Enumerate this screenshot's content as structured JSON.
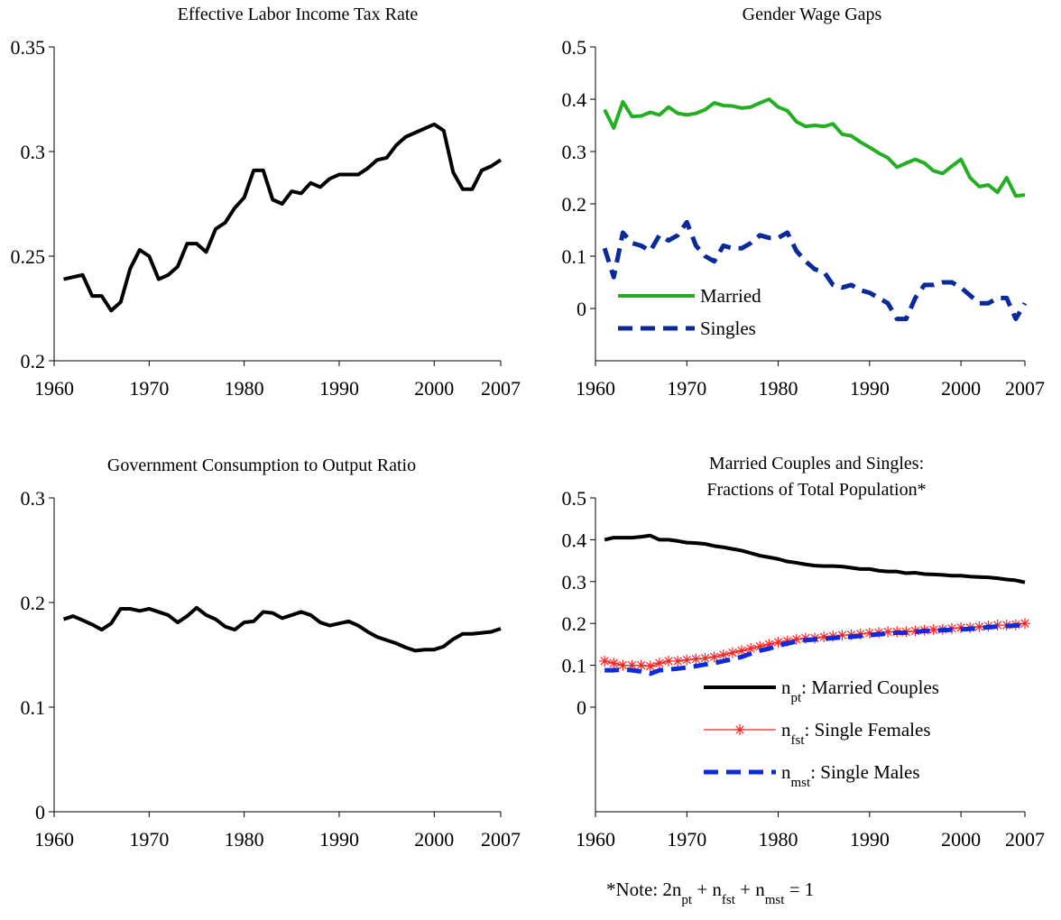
{
  "chart_data": [
    {
      "type": "line",
      "title": "Effective Labor Income Tax Rate",
      "x": [
        1961,
        1962,
        1963,
        1964,
        1965,
        1966,
        1967,
        1968,
        1969,
        1970,
        1971,
        1972,
        1973,
        1974,
        1975,
        1976,
        1977,
        1978,
        1979,
        1980,
        1981,
        1982,
        1983,
        1984,
        1985,
        1986,
        1987,
        1988,
        1989,
        1990,
        1991,
        1992,
        1993,
        1994,
        1995,
        1996,
        1997,
        1998,
        1999,
        2000,
        2001,
        2002,
        2003,
        2004,
        2005,
        2006,
        2007
      ],
      "series": [
        {
          "name": null,
          "color": "#000000",
          "linestyle": "solid",
          "values": [
            0.239,
            0.24,
            0.241,
            0.231,
            0.231,
            0.224,
            0.228,
            0.244,
            0.253,
            0.25,
            0.239,
            0.241,
            0.245,
            0.256,
            0.256,
            0.252,
            0.263,
            0.266,
            0.273,
            0.278,
            0.291,
            0.291,
            0.277,
            0.275,
            0.281,
            0.28,
            0.285,
            0.283,
            0.287,
            0.289,
            0.289,
            0.289,
            0.292,
            0.296,
            0.297,
            0.303,
            0.307,
            0.309,
            0.311,
            0.313,
            0.31,
            0.29,
            0.282,
            0.282,
            0.291,
            0.293,
            0.296
          ]
        }
      ],
      "xlim": [
        1960,
        2007
      ],
      "xticks": [
        1960,
        1970,
        1980,
        1990,
        2000,
        2007
      ],
      "ylim": [
        0.2,
        0.35
      ],
      "yticks": [
        0.2,
        0.25,
        0.3,
        0.35
      ]
    },
    {
      "type": "line",
      "title": "Gender Wage Gaps",
      "x": [
        1961,
        1962,
        1963,
        1964,
        1965,
        1966,
        1967,
        1968,
        1969,
        1970,
        1971,
        1972,
        1973,
        1974,
        1975,
        1976,
        1977,
        1978,
        1979,
        1980,
        1981,
        1982,
        1983,
        1984,
        1985,
        1986,
        1987,
        1988,
        1989,
        1990,
        1991,
        1992,
        1993,
        1994,
        1995,
        1996,
        1997,
        1998,
        1999,
        2000,
        2001,
        2002,
        2003,
        2004,
        2005,
        2006,
        2007
      ],
      "series": [
        {
          "name": "Married",
          "color": "#22b022",
          "linestyle": "solid",
          "values": [
            0.38,
            0.345,
            0.395,
            0.367,
            0.368,
            0.375,
            0.37,
            0.385,
            0.373,
            0.37,
            0.373,
            0.38,
            0.393,
            0.388,
            0.387,
            0.383,
            0.385,
            0.393,
            0.4,
            0.385,
            0.378,
            0.357,
            0.348,
            0.35,
            0.348,
            0.353,
            0.333,
            0.33,
            0.318,
            0.308,
            0.297,
            0.288,
            0.27,
            0.278,
            0.285,
            0.278,
            0.263,
            0.258,
            0.272,
            0.285,
            0.25,
            0.233,
            0.236,
            0.222,
            0.25,
            0.215,
            0.217
          ]
        },
        {
          "name": "Singles",
          "color": "#0a2a9c",
          "linestyle": "dashed",
          "values": [
            0.115,
            0.06,
            0.145,
            0.125,
            0.12,
            0.11,
            0.14,
            0.13,
            0.14,
            0.165,
            0.12,
            0.1,
            0.09,
            0.12,
            0.115,
            0.115,
            0.125,
            0.14,
            0.135,
            0.135,
            0.145,
            0.11,
            0.09,
            0.075,
            0.07,
            0.045,
            0.04,
            0.045,
            0.035,
            0.03,
            0.02,
            0.01,
            -0.02,
            -0.02,
            0.02,
            0.045,
            0.045,
            0.05,
            0.05,
            0.04,
            0.025,
            0.01,
            0.01,
            0.02,
            0.02,
            -0.02,
            0.01
          ]
        }
      ],
      "xlim": [
        1960,
        2007
      ],
      "xticks": [
        1960,
        1970,
        1980,
        1990,
        2000,
        2007
      ],
      "ylim": [
        -0.1,
        0.5
      ],
      "yticks": [
        0,
        0.1,
        0.2,
        0.3,
        0.4,
        0.5
      ],
      "legend": "lower-left"
    },
    {
      "type": "line",
      "title": "Government Consumption to Output Ratio",
      "x": [
        1961,
        1962,
        1963,
        1964,
        1965,
        1966,
        1967,
        1968,
        1969,
        1970,
        1971,
        1972,
        1973,
        1974,
        1975,
        1976,
        1977,
        1978,
        1979,
        1980,
        1981,
        1982,
        1983,
        1984,
        1985,
        1986,
        1987,
        1988,
        1989,
        1990,
        1991,
        1992,
        1993,
        1994,
        1995,
        1996,
        1997,
        1998,
        1999,
        2000,
        2001,
        2002,
        2003,
        2004,
        2005,
        2006,
        2007
      ],
      "series": [
        {
          "name": null,
          "color": "#000000",
          "linestyle": "solid",
          "values": [
            0.184,
            0.187,
            0.183,
            0.179,
            0.174,
            0.18,
            0.194,
            0.194,
            0.192,
            0.194,
            0.191,
            0.188,
            0.181,
            0.187,
            0.195,
            0.188,
            0.184,
            0.177,
            0.174,
            0.181,
            0.182,
            0.191,
            0.19,
            0.185,
            0.188,
            0.191,
            0.188,
            0.181,
            0.178,
            0.18,
            0.182,
            0.178,
            0.172,
            0.167,
            0.164,
            0.161,
            0.157,
            0.154,
            0.155,
            0.155,
            0.158,
            0.165,
            0.17,
            0.17,
            0.171,
            0.172,
            0.175
          ]
        }
      ],
      "xlim": [
        1960,
        2007
      ],
      "xticks": [
        1960,
        1970,
        1980,
        1990,
        2000,
        2007
      ],
      "ylim": [
        0,
        0.3
      ],
      "yticks": [
        0,
        0.1,
        0.2,
        0.3
      ]
    },
    {
      "type": "line",
      "title_lines": [
        "Married Couples and Singles:",
        "Fractions of Total Population*"
      ],
      "x": [
        1961,
        1962,
        1963,
        1964,
        1965,
        1966,
        1967,
        1968,
        1969,
        1970,
        1971,
        1972,
        1973,
        1974,
        1975,
        1976,
        1977,
        1978,
        1979,
        1980,
        1981,
        1982,
        1983,
        1984,
        1985,
        1986,
        1987,
        1988,
        1989,
        1990,
        1991,
        1992,
        1993,
        1994,
        1995,
        1996,
        1997,
        1998,
        1999,
        2000,
        2001,
        2002,
        2003,
        2004,
        2005,
        2006,
        2007
      ],
      "series": [
        {
          "symbol": "n",
          "subscript": "pt",
          "name": ": Married Couples",
          "color": "#000000",
          "linestyle": "solid",
          "values": [
            0.4,
            0.405,
            0.405,
            0.405,
            0.407,
            0.41,
            0.4,
            0.4,
            0.397,
            0.393,
            0.392,
            0.39,
            0.385,
            0.382,
            0.378,
            0.374,
            0.368,
            0.362,
            0.358,
            0.354,
            0.348,
            0.345,
            0.341,
            0.338,
            0.337,
            0.337,
            0.336,
            0.333,
            0.33,
            0.33,
            0.326,
            0.324,
            0.324,
            0.32,
            0.321,
            0.318,
            0.317,
            0.316,
            0.314,
            0.314,
            0.312,
            0.311,
            0.31,
            0.308,
            0.305,
            0.303,
            0.298
          ]
        },
        {
          "symbol": "n",
          "subscript": "fst",
          "name": ": Single Females",
          "color": "#ff2020",
          "linestyle": "thin",
          "marker": "asterisk",
          "values": [
            0.11,
            0.105,
            0.1,
            0.1,
            0.1,
            0.098,
            0.105,
            0.11,
            0.11,
            0.113,
            0.115,
            0.117,
            0.12,
            0.125,
            0.13,
            0.135,
            0.14,
            0.145,
            0.15,
            0.155,
            0.158,
            0.162,
            0.165,
            0.165,
            0.168,
            0.17,
            0.172,
            0.173,
            0.175,
            0.177,
            0.178,
            0.18,
            0.18,
            0.18,
            0.182,
            0.184,
            0.185,
            0.186,
            0.188,
            0.19,
            0.19,
            0.192,
            0.194,
            0.196,
            0.196,
            0.197,
            0.2
          ]
        },
        {
          "symbol": "n",
          "subscript": "mst",
          "name": ": Single Males",
          "color": "#0a2ae0",
          "linestyle": "dashed",
          "values": [
            0.088,
            0.088,
            0.09,
            0.088,
            0.085,
            0.08,
            0.088,
            0.09,
            0.092,
            0.095,
            0.098,
            0.102,
            0.105,
            0.11,
            0.115,
            0.12,
            0.128,
            0.135,
            0.14,
            0.147,
            0.152,
            0.157,
            0.16,
            0.162,
            0.163,
            0.165,
            0.167,
            0.168,
            0.17,
            0.172,
            0.174,
            0.176,
            0.178,
            0.178,
            0.18,
            0.182,
            0.183,
            0.184,
            0.185,
            0.186,
            0.187,
            0.189,
            0.191,
            0.193,
            0.194,
            0.195,
            0.197
          ]
        }
      ],
      "xlim": [
        1960,
        2007
      ],
      "xticks": [
        1960,
        1970,
        1980,
        1990,
        2000,
        2007
      ],
      "ylim": [
        -0.25,
        0.5
      ],
      "yticks": [
        0,
        0.1,
        0.2,
        0.3,
        0.4,
        0.5
      ],
      "legend": "lower-right"
    }
  ],
  "note": {
    "parts": [
      "*Note: 2n",
      "pt",
      " + n",
      "fst",
      " + n",
      "mst",
      " = 1"
    ]
  }
}
